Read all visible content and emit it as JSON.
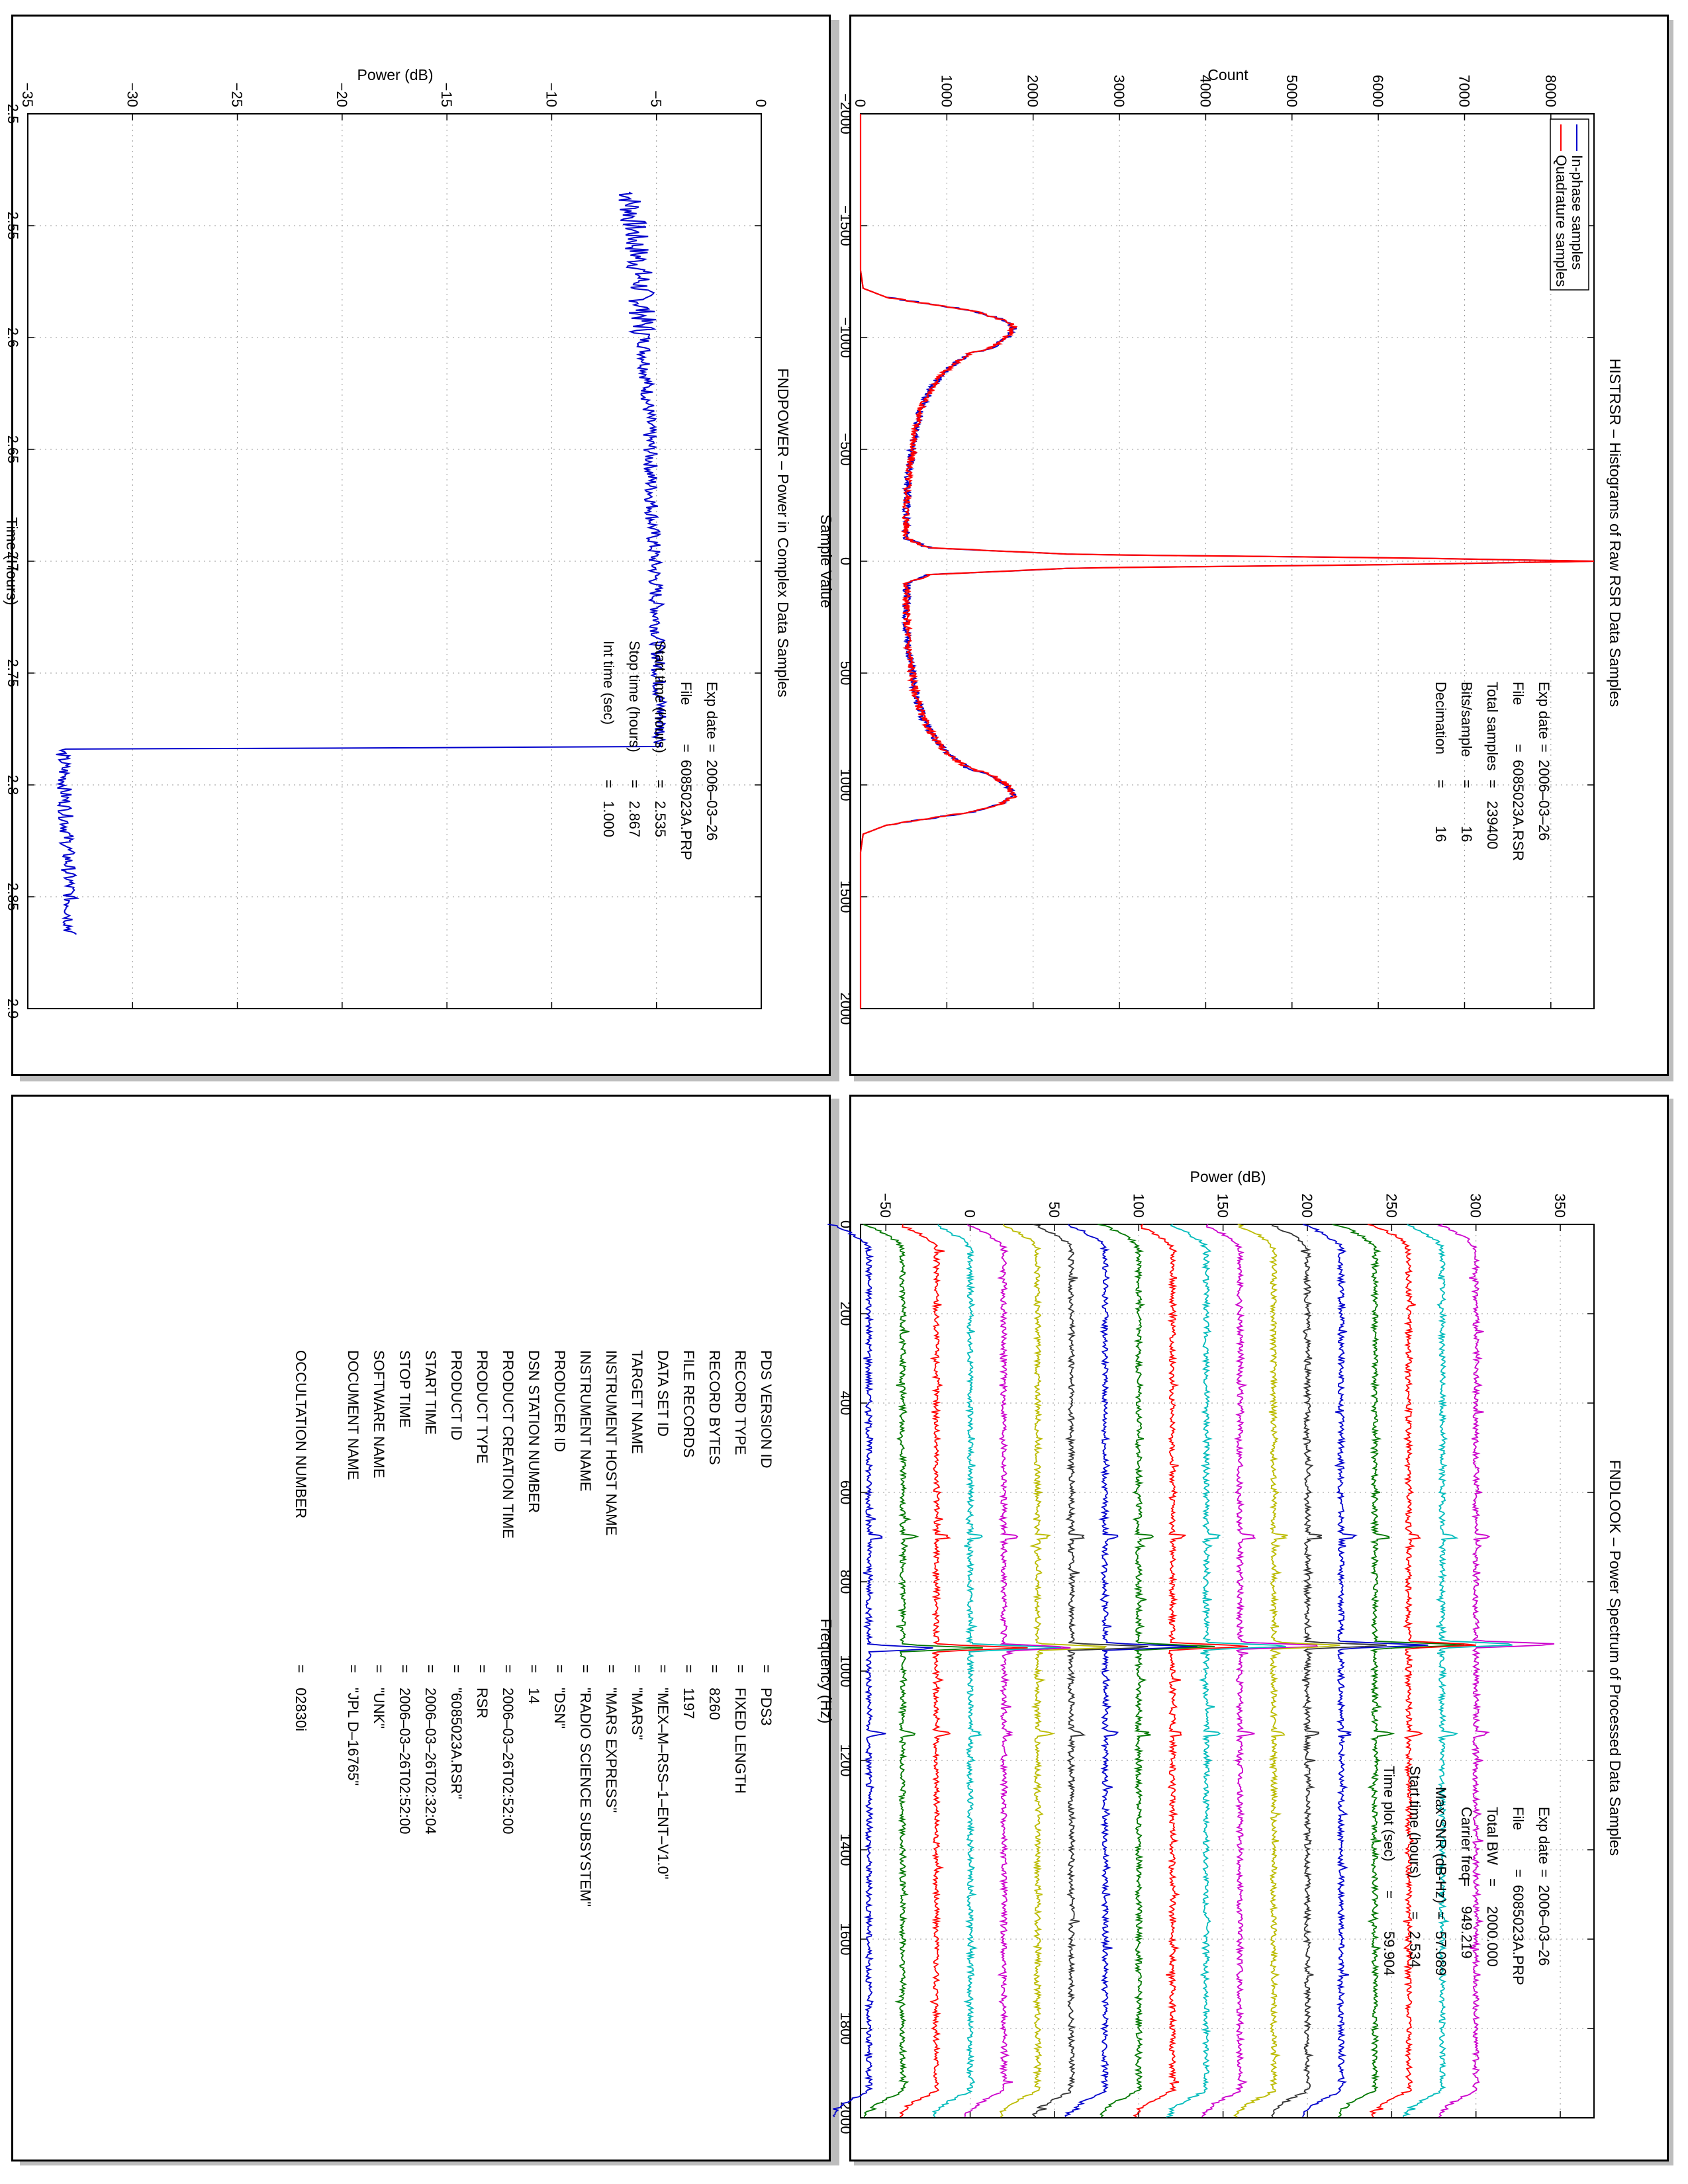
{
  "chart_data": [
    {
      "id": "histrsr",
      "type": "line",
      "title": "HISTRSR – Histograms of Raw RSR Data Samples",
      "xlabel": "Sample Value",
      "ylabel": "Count",
      "xlim": [
        -2000,
        2000
      ],
      "ylim": [
        0,
        8500
      ],
      "xticks": [
        -2000,
        -1500,
        -1000,
        -500,
        0,
        500,
        1000,
        1500,
        2000
      ],
      "yticks": [
        0,
        1000,
        2000,
        3000,
        4000,
        5000,
        6000,
        7000,
        8000
      ],
      "grid": true,
      "legend_position": "top-left",
      "series": [
        {
          "name": "In-phase samples",
          "color": "#0000cc",
          "x": [
            -2000,
            -1300,
            -1220,
            -1180,
            -1150,
            -1120,
            -1080,
            -1050,
            -1000,
            -950,
            -930,
            -900,
            -850,
            -800,
            -700,
            -600,
            -500,
            -400,
            -300,
            -200,
            -100,
            -60,
            -30,
            -15,
            0,
            15,
            30,
            60,
            100,
            200,
            300,
            400,
            500,
            600,
            700,
            800,
            850,
            900,
            930,
            950,
            1000,
            1050,
            1080,
            1120,
            1150,
            1180,
            1220,
            1300,
            2000
          ],
          "y": [
            0,
            0,
            30,
            300,
            800,
            1300,
            1650,
            1780,
            1700,
            1500,
            1270,
            1150,
            980,
            870,
            720,
            640,
            600,
            560,
            540,
            530,
            540,
            800,
            2500,
            6200,
            8500,
            6200,
            2500,
            800,
            540,
            530,
            540,
            560,
            600,
            640,
            720,
            870,
            980,
            1150,
            1270,
            1500,
            1700,
            1780,
            1650,
            1300,
            800,
            300,
            30,
            0,
            0
          ]
        },
        {
          "name": "Quadrature samples",
          "color": "#ff0000",
          "x": [
            -2000,
            -1300,
            -1220,
            -1180,
            -1150,
            -1120,
            -1080,
            -1050,
            -1000,
            -950,
            -930,
            -900,
            -850,
            -800,
            -700,
            -600,
            -500,
            -400,
            -300,
            -200,
            -100,
            -60,
            -30,
            -15,
            0,
            15,
            30,
            60,
            100,
            200,
            300,
            400,
            500,
            600,
            700,
            800,
            850,
            900,
            930,
            950,
            1000,
            1050,
            1080,
            1120,
            1150,
            1180,
            1220,
            1300,
            2000
          ],
          "y": [
            0,
            0,
            30,
            300,
            800,
            1300,
            1650,
            1780,
            1700,
            1500,
            1270,
            1150,
            980,
            870,
            720,
            640,
            600,
            560,
            540,
            530,
            540,
            800,
            2500,
            6200,
            8500,
            6200,
            2500,
            800,
            540,
            530,
            540,
            560,
            600,
            640,
            720,
            870,
            980,
            1150,
            1270,
            1500,
            1700,
            1780,
            1650,
            1300,
            800,
            300,
            30,
            0,
            0
          ]
        }
      ],
      "annotations": [
        {
          "label": "Exp date",
          "value": "2006–03–26"
        },
        {
          "label": "File",
          "value": "6085023A.RSR"
        },
        {
          "label": "Total samples",
          "value": "239400"
        },
        {
          "label": "Bits/sample",
          "value": "16"
        },
        {
          "label": "Decimation",
          "value": "16"
        }
      ]
    },
    {
      "id": "fndpower",
      "type": "line",
      "title": "FNDPOWER – Power in Complex Data Samples",
      "xlabel": "Time (Hours)",
      "ylabel": "Power (dB)",
      "xlim": [
        2.5,
        2.9
      ],
      "ylim": [
        -35,
        0
      ],
      "xticks": [
        2.5,
        2.55,
        2.6,
        2.65,
        2.7,
        2.75,
        2.8,
        2.85,
        2.9
      ],
      "yticks": [
        -35,
        -30,
        -25,
        -20,
        -15,
        -10,
        -5,
        0
      ],
      "grid": true,
      "series": [
        {
          "color": "#0000cc",
          "x": [
            2.535,
            2.55,
            2.57,
            2.6,
            2.63,
            2.65,
            2.68,
            2.7,
            2.72,
            2.75,
            2.77,
            2.783,
            2.784,
            2.79,
            2.81,
            2.83,
            2.85,
            2.867
          ],
          "y": [
            -6.3,
            -6.1,
            -5.8,
            -5.6,
            -5.4,
            -5.3,
            -5.2,
            -5.1,
            -5.0,
            -4.9,
            -4.8,
            -4.8,
            -33.4,
            -33.3,
            -33.2,
            -33.1,
            -33.0,
            -33.0
          ]
        }
      ],
      "annotations": [
        {
          "label": "Exp date",
          "value": "2006–03–26"
        },
        {
          "label": "File",
          "value": "6085023A.PRP"
        },
        {
          "label": "Start time (hours)",
          "value": "2.535"
        },
        {
          "label": "Stop time (hours)",
          "value": "2.867"
        },
        {
          "label": "Int time (sec)",
          "value": "1.000"
        }
      ]
    },
    {
      "id": "fndlook",
      "type": "line",
      "title": "FNDLOOK – Power Spectrum of Processed Data Samples",
      "xlabel": "Frequency (Hz)",
      "ylabel": "Power (dB)",
      "xlim": [
        0,
        2000
      ],
      "ylim": [
        -65,
        370
      ],
      "xticks": [
        0,
        200,
        400,
        600,
        800,
        1000,
        1200,
        1400,
        1600,
        1800,
        2000
      ],
      "yticks": [
        -50,
        0,
        50,
        100,
        150,
        200,
        250,
        300,
        350
      ],
      "grid": true,
      "series_offsets": [
        -60,
        -40,
        -20,
        0,
        20,
        40,
        60,
        80,
        100,
        120,
        140,
        160,
        180,
        200,
        220,
        240,
        260,
        280,
        300
      ],
      "series_colors": [
        "#0000cc",
        "#007700",
        "#ff0000",
        "#00bbbb",
        "#cc00cc",
        "#bbbb00",
        "#333333",
        "#0000cc",
        "#007700",
        "#ff0000",
        "#00bbbb",
        "#cc00cc",
        "#bbbb00",
        "#333333",
        "#0000cc",
        "#007700",
        "#ff0000",
        "#00bbbb",
        "#cc00cc"
      ],
      "annotations": [
        {
          "label": "Exp date",
          "value": "2006–03–26"
        },
        {
          "label": "File",
          "value": "6085023A.PRP"
        },
        {
          "label": "Total BW",
          "value": "2000.000"
        },
        {
          "label": "Carrier freq",
          "value": "949.219"
        },
        {
          "label": "Max SNR (dB-Hz)",
          "value": "57.089"
        },
        {
          "label": "Start time (hours)",
          "value": "2.534"
        },
        {
          "label": "Time plot (sec)",
          "value": "59.904"
        }
      ]
    }
  ],
  "label_table": {
    "rows": [
      {
        "key": "PDS VERSION ID",
        "value": "PDS3"
      },
      {
        "key": "RECORD TYPE",
        "value": "FIXED LENGTH"
      },
      {
        "key": "RECORD BYTES",
        "value": "8260"
      },
      {
        "key": "FILE RECORDS",
        "value": "1197"
      },
      {
        "key": "DATA SET ID",
        "value": "\"MEX–M–RSS–1–ENT–V1.0\""
      },
      {
        "key": "TARGET NAME",
        "value": "\"MARS\""
      },
      {
        "key": "INSTRUMENT HOST NAME",
        "value": "\"MARS EXPRESS\""
      },
      {
        "key": "INSTRUMENT NAME",
        "value": "\"RADIO SCIENCE SUBSYSTEM\""
      },
      {
        "key": "PRODUCER ID",
        "value": "\"DSN\""
      },
      {
        "key": "DSN STATION NUMBER",
        "value": "14"
      },
      {
        "key": "PRODUCT CREATION TIME",
        "value": "2006–03–26T02:52:00"
      },
      {
        "key": "PRODUCT TYPE",
        "value": "RSR"
      },
      {
        "key": "PRODUCT ID",
        "value": "\"6085023A.RSR\""
      },
      {
        "key": "START TIME",
        "value": "2006–03–26T02:32:04"
      },
      {
        "key": "STOP TIME",
        "value": "2006–03–26T02:52:00"
      },
      {
        "key": "SOFTWARE NAME",
        "value": "\"UNK\""
      },
      {
        "key": "DOCUMENT NAME",
        "value": "\"JPL D–16765\""
      }
    ],
    "occultation": {
      "key": "OCCULTATION NUMBER",
      "value": "02830i"
    }
  }
}
